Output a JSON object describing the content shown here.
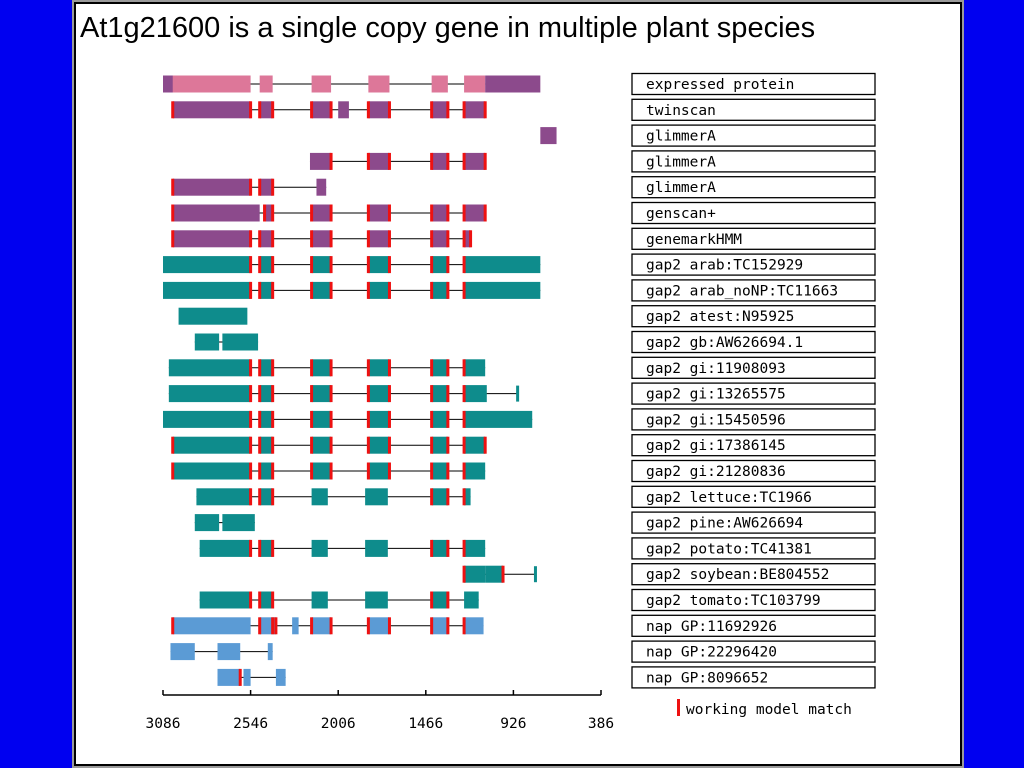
{
  "title": "At1g21600 is a single copy gene in multiple plant species",
  "colors": {
    "background": "#0000f0",
    "frame": "#ffffff",
    "pink": "#dd7799",
    "purple": "#8c4a8c",
    "teal": "#0e8c8c",
    "blue": "#5b9bd5",
    "match": "#ee1111",
    "line": "#000000"
  },
  "axis": {
    "min": 386,
    "max": 3086,
    "direction": "reversed",
    "ticks": [
      "3086",
      "2546",
      "2006",
      "1466",
      "926",
      "386"
    ]
  },
  "legend": {
    "label": "working model match",
    "color": "#ee1111"
  },
  "tracks": [
    {
      "label": "expressed protein",
      "color": "pink",
      "bars": [
        [
          3086,
          2546
        ],
        [
          2490,
          2410
        ],
        [
          2170,
          2050
        ],
        [
          1820,
          1690
        ],
        [
          1430,
          1330
        ],
        [
          1230,
          1100
        ]
      ],
      "overlay": [
        [
          3086,
          3026,
          "purple"
        ],
        [
          1100,
          760,
          "purple"
        ]
      ],
      "marks": [],
      "tail": null
    },
    {
      "label": "twinscan",
      "color": "purple",
      "bars": [
        [
          3026,
          2546
        ],
        [
          2490,
          2410
        ],
        [
          2006,
          1940
        ],
        [
          2170,
          2050
        ],
        [
          1820,
          1690
        ],
        [
          1430,
          1330
        ],
        [
          1230,
          1100
        ]
      ],
      "overlay": [],
      "marks": [
        3026,
        2546,
        2490,
        2410,
        2170,
        2050,
        1820,
        1690,
        1430,
        1330,
        1230,
        1100
      ],
      "tail": null
    },
    {
      "label": "glimmerA",
      "color": "purple",
      "bars": [
        [
          760,
          660
        ]
      ],
      "overlay": [],
      "marks": [],
      "tail": null
    },
    {
      "label": "glimmerA",
      "color": "purple",
      "bars": [
        [
          2180,
          2050
        ],
        [
          1820,
          1690
        ],
        [
          1430,
          1330
        ],
        [
          1230,
          1100
        ]
      ],
      "overlay": [],
      "marks": [
        2050,
        1820,
        1690,
        1430,
        1330,
        1230,
        1100
      ],
      "tail": null
    },
    {
      "label": "glimmerA",
      "color": "purple",
      "bars": [
        [
          3026,
          2546
        ],
        [
          2490,
          2410
        ],
        [
          2140,
          2080
        ]
      ],
      "overlay": [],
      "marks": [
        3026,
        2546,
        2490,
        2410
      ],
      "tail": null
    },
    {
      "label": "genscan+",
      "color": "purple",
      "bars": [
        [
          3026,
          2490
        ],
        [
          2460,
          2410
        ],
        [
          2170,
          2050
        ],
        [
          1820,
          1690
        ],
        [
          1430,
          1330
        ],
        [
          1230,
          1100
        ]
      ],
      "overlay": [],
      "marks": [
        3026,
        2460,
        2410,
        2170,
        2050,
        1820,
        1690,
        1430,
        1330,
        1230,
        1100
      ],
      "tail": null
    },
    {
      "label": "genemarkHMM",
      "color": "purple",
      "bars": [
        [
          3026,
          2546
        ],
        [
          2490,
          2410
        ],
        [
          2170,
          2050
        ],
        [
          1820,
          1690
        ],
        [
          1430,
          1330
        ],
        [
          1230,
          1190
        ]
      ],
      "overlay": [],
      "marks": [
        3026,
        2546,
        2490,
        2410,
        2170,
        2050,
        1820,
        1690,
        1430,
        1330,
        1230,
        1190
      ],
      "tail": null
    },
    {
      "label": "gap2 arab:TC152929",
      "color": "teal",
      "bars": [
        [
          3086,
          2546
        ],
        [
          2490,
          2410
        ],
        [
          2170,
          2050
        ],
        [
          1820,
          1690
        ],
        [
          1430,
          1330
        ],
        [
          1230,
          760
        ]
      ],
      "overlay": [],
      "marks": [
        2546,
        2490,
        2410,
        2170,
        2050,
        1820,
        1690,
        1430,
        1330,
        1230
      ],
      "tail": null
    },
    {
      "label": "gap2 arab_noNP:TC11663",
      "color": "teal",
      "bars": [
        [
          3086,
          2546
        ],
        [
          2490,
          2410
        ],
        [
          2170,
          2050
        ],
        [
          1820,
          1690
        ],
        [
          1430,
          1330
        ],
        [
          1230,
          760
        ]
      ],
      "overlay": [],
      "marks": [
        2546,
        2490,
        2410,
        2170,
        2050,
        1820,
        1690,
        1430,
        1330,
        1230
      ],
      "tail": null
    },
    {
      "label": "gap2 atest:N95925",
      "color": "teal",
      "bars": [
        [
          2990,
          2566
        ]
      ],
      "overlay": [],
      "marks": [],
      "tail": null
    },
    {
      "label": "gap2 gb:AW626694.1",
      "color": "teal",
      "bars": [
        [
          2890,
          2740
        ],
        [
          2720,
          2500
        ]
      ],
      "overlay": [],
      "marks": [],
      "tail": null
    },
    {
      "label": "gap2 gi:11908093",
      "color": "teal",
      "bars": [
        [
          3050,
          2546
        ],
        [
          2490,
          2410
        ],
        [
          2170,
          2050
        ],
        [
          1820,
          1690
        ],
        [
          1430,
          1330
        ],
        [
          1230,
          1100
        ]
      ],
      "overlay": [],
      "marks": [
        2546,
        2490,
        2410,
        2170,
        2050,
        1820,
        1690,
        1430,
        1330,
        1230
      ],
      "tail": null
    },
    {
      "label": "gap2 gi:13265575",
      "color": "teal",
      "bars": [
        [
          3050,
          2546
        ],
        [
          2490,
          2410
        ],
        [
          2170,
          2050
        ],
        [
          1820,
          1690
        ],
        [
          1430,
          1330
        ],
        [
          1230,
          1090
        ]
      ],
      "overlay": [],
      "marks": [
        2546,
        2490,
        2410,
        2170,
        2050,
        1820,
        1690,
        1430,
        1330,
        1230
      ],
      "tail": 900
    },
    {
      "label": "gap2 gi:15450596",
      "color": "teal",
      "bars": [
        [
          3086,
          2546
        ],
        [
          2490,
          2410
        ],
        [
          2170,
          2050
        ],
        [
          1820,
          1690
        ],
        [
          1430,
          1330
        ],
        [
          1230,
          810
        ]
      ],
      "overlay": [],
      "marks": [
        2546,
        2490,
        2410,
        2170,
        2050,
        1820,
        1690,
        1430,
        1330,
        1230
      ],
      "tail": null
    },
    {
      "label": "gap2 gi:17386145",
      "color": "teal",
      "bars": [
        [
          3026,
          2546
        ],
        [
          2490,
          2410
        ],
        [
          2170,
          2050
        ],
        [
          1820,
          1690
        ],
        [
          1430,
          1330
        ],
        [
          1230,
          1100
        ]
      ],
      "overlay": [],
      "marks": [
        3026,
        2546,
        2490,
        2410,
        2170,
        2050,
        1820,
        1690,
        1430,
        1330,
        1230,
        1100
      ],
      "tail": null
    },
    {
      "label": "gap2 gi:21280836",
      "color": "teal",
      "bars": [
        [
          3026,
          2546
        ],
        [
          2490,
          2410
        ],
        [
          2170,
          2050
        ],
        [
          1820,
          1690
        ],
        [
          1430,
          1330
        ],
        [
          1230,
          1100
        ]
      ],
      "overlay": [],
      "marks": [
        3026,
        2546,
        2490,
        2410,
        2170,
        2050,
        1820,
        1690,
        1430,
        1330,
        1230
      ],
      "tail": null
    },
    {
      "label": "gap2 lettuce:TC1966",
      "color": "teal",
      "bars": [
        [
          2880,
          2546
        ],
        [
          2490,
          2410
        ],
        [
          2170,
          2070
        ],
        [
          1840,
          1700
        ],
        [
          1430,
          1330
        ],
        [
          1230,
          1190
        ]
      ],
      "overlay": [],
      "marks": [
        2546,
        2490,
        2410,
        1430,
        1330,
        1230
      ],
      "tail": null
    },
    {
      "label": "gap2 pine:AW626694",
      "color": "teal",
      "bars": [
        [
          2890,
          2740
        ],
        [
          2720,
          2520
        ]
      ],
      "overlay": [],
      "marks": [],
      "tail": null
    },
    {
      "label": "gap2 potato:TC41381",
      "color": "teal",
      "bars": [
        [
          2860,
          2546
        ],
        [
          2490,
          2410
        ],
        [
          2170,
          2070
        ],
        [
          1840,
          1700
        ],
        [
          1430,
          1330
        ],
        [
          1230,
          1100
        ]
      ],
      "overlay": [],
      "marks": [
        2546,
        2490,
        2410,
        1430,
        1330,
        1230
      ],
      "tail": null
    },
    {
      "label": "gap2 soybean:BE804552",
      "color": "teal",
      "bars": [
        [
          1100,
          990
        ],
        [
          1230,
          1100
        ]
      ],
      "overlay": [],
      "marks": [
        1230,
        990
      ],
      "tail": 790
    },
    {
      "label": "gap2 tomato:TC103799",
      "color": "teal",
      "bars": [
        [
          2860,
          2546
        ],
        [
          2490,
          2410
        ],
        [
          2170,
          2070
        ],
        [
          1840,
          1700
        ],
        [
          1430,
          1330
        ],
        [
          1230,
          1140
        ]
      ],
      "overlay": [],
      "marks": [
        2546,
        2490,
        2410,
        1430,
        1330
      ],
      "tail": null
    },
    {
      "label": "nap GP:11692926",
      "color": "blue",
      "bars": [
        [
          3026,
          2546
        ],
        [
          2490,
          2390
        ],
        [
          2290,
          2250
        ],
        [
          2170,
          2050
        ],
        [
          1820,
          1690
        ],
        [
          1430,
          1330
        ],
        [
          1230,
          1110
        ]
      ],
      "overlay": [],
      "marks": [
        3026,
        2490,
        2410,
        2390,
        2170,
        2050,
        1820,
        1690,
        1430,
        1330,
        1230
      ],
      "tail": null
    },
    {
      "label": "nap GP:22296420",
      "color": "blue",
      "bars": [
        [
          3040,
          2890
        ],
        [
          2750,
          2610
        ],
        [
          2440,
          2410
        ]
      ],
      "overlay": [],
      "marks": [],
      "tail": null
    },
    {
      "label": "nap GP:8096652",
      "color": "blue",
      "bars": [
        [
          2750,
          2610
        ],
        [
          2590,
          2546
        ],
        [
          2390,
          2330
        ]
      ],
      "overlay": [],
      "marks": [
        2610
      ],
      "tail": null
    }
  ]
}
